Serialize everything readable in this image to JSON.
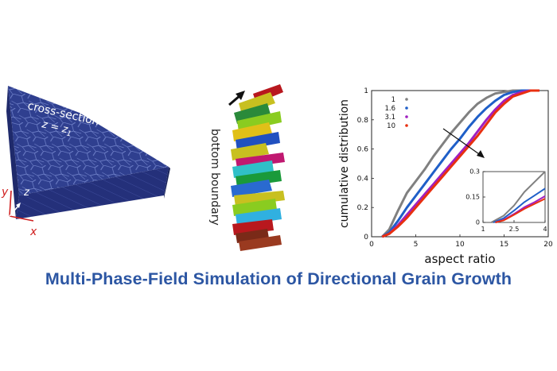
{
  "title": "Multi-Phase-Field Simulation of Directional Grain Growth",
  "slab": {
    "label_cross_section": "cross-section",
    "label_z": "z = z",
    "label_z_sub": "1",
    "axis_y": "y",
    "axis_z": "z",
    "axis_x": "x",
    "colors": {
      "top": "#2f3f8f",
      "front": "#24307a",
      "side": "#1f2a6b",
      "axes": "#d02020"
    }
  },
  "grains": {
    "label": "bottom boundary",
    "arrow_icon": "arrow-up-right-icon"
  },
  "chart_data": [
    {
      "type": "line",
      "xlabel": "aspect ratio",
      "ylabel": "cumulative distribution",
      "xlim": [
        0,
        20
      ],
      "ylim": [
        0,
        1
      ],
      "xticks": [
        "0",
        "5",
        "10",
        "15",
        "20"
      ],
      "yticks": [
        "0",
        "0.2",
        "0.4",
        "0.6",
        "0.8",
        "1"
      ],
      "legend": "top-left",
      "annotation": "arrow indicating increasing parameter",
      "series": [
        {
          "name": "1",
          "color": "#808080",
          "x": [
            1.2,
            2,
            3,
            4,
            5,
            6,
            7,
            8,
            9,
            10,
            11,
            12,
            13,
            14,
            15,
            16,
            17,
            18,
            19
          ],
          "y": [
            0,
            0.05,
            0.18,
            0.3,
            0.38,
            0.46,
            0.55,
            0.63,
            0.71,
            0.78,
            0.85,
            0.91,
            0.95,
            0.98,
            0.99,
            1,
            1,
            1,
            1
          ]
        },
        {
          "name": "1.6",
          "color": "#1f5fc8",
          "x": [
            1.2,
            2,
            3,
            4,
            5,
            6,
            7,
            8,
            9,
            10,
            11,
            12,
            13,
            14,
            15,
            16,
            17,
            18,
            19
          ],
          "y": [
            0,
            0.03,
            0.11,
            0.2,
            0.28,
            0.36,
            0.44,
            0.52,
            0.6,
            0.67,
            0.75,
            0.82,
            0.88,
            0.93,
            0.97,
            0.99,
            1,
            1,
            1
          ]
        },
        {
          "name": "3.1",
          "color": "#a020c0",
          "x": [
            1.2,
            2,
            3,
            4,
            5,
            6,
            7,
            8,
            9,
            10,
            11,
            12,
            13,
            14,
            15,
            16,
            17,
            18,
            19
          ],
          "y": [
            0,
            0.02,
            0.08,
            0.15,
            0.22,
            0.29,
            0.36,
            0.43,
            0.5,
            0.57,
            0.64,
            0.72,
            0.8,
            0.87,
            0.93,
            0.97,
            0.99,
            1,
            1
          ]
        },
        {
          "name": "10",
          "color": "#e83010",
          "x": [
            1.2,
            2,
            3,
            4,
            5,
            6,
            7,
            8,
            9,
            10,
            11,
            12,
            13,
            14,
            15,
            16,
            17,
            18,
            19
          ],
          "y": [
            0,
            0.02,
            0.07,
            0.13,
            0.2,
            0.27,
            0.34,
            0.41,
            0.48,
            0.55,
            0.62,
            0.69,
            0.77,
            0.85,
            0.91,
            0.96,
            0.98,
            1,
            1
          ]
        }
      ]
    },
    {
      "type": "line",
      "xlabel": "",
      "ylabel": "",
      "xlim": [
        1,
        4
      ],
      "ylim": [
        0,
        0.3
      ],
      "xticks": [
        "1",
        "2.5",
        "4"
      ],
      "yticks": [
        "0",
        "0.15",
        "0.3"
      ],
      "series": [
        {
          "color": "#808080",
          "x": [
            1.4,
            2,
            2.5,
            3,
            3.5,
            4
          ],
          "y": [
            0,
            0.04,
            0.1,
            0.18,
            0.24,
            0.3
          ]
        },
        {
          "color": "#1f5fc8",
          "x": [
            1.5,
            2,
            2.5,
            3,
            3.5,
            4
          ],
          "y": [
            0,
            0.025,
            0.07,
            0.12,
            0.16,
            0.2
          ]
        },
        {
          "color": "#a020c0",
          "x": [
            1.6,
            2,
            2.5,
            3,
            3.5,
            4
          ],
          "y": [
            0,
            0.015,
            0.05,
            0.09,
            0.12,
            0.155
          ]
        },
        {
          "color": "#e83010",
          "x": [
            1.6,
            2,
            2.5,
            3,
            3.5,
            4
          ],
          "y": [
            0,
            0.012,
            0.045,
            0.08,
            0.11,
            0.14
          ]
        }
      ]
    }
  ]
}
